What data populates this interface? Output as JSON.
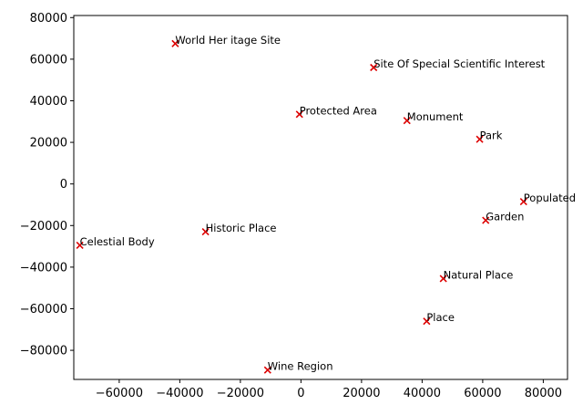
{
  "chart_data": {
    "type": "scatter",
    "title": "",
    "xlabel": "",
    "ylabel": "",
    "xlim": [
      -75000,
      88000
    ],
    "ylim": [
      -94000,
      81000
    ],
    "x_ticks": [
      -60000,
      -40000,
      -20000,
      0,
      20000,
      40000,
      60000,
      80000
    ],
    "y_ticks": [
      -80000,
      -60000,
      -40000,
      -20000,
      0,
      20000,
      40000,
      60000,
      80000
    ],
    "x_tick_labels": [
      "−60000",
      "−40000",
      "−20000",
      "0",
      "20000",
      "40000",
      "60000",
      "80000"
    ],
    "y_tick_labels": [
      "−80000",
      "−60000",
      "−40000",
      "−20000",
      "0",
      "20000",
      "40000",
      "60000",
      "80000"
    ],
    "marker": "x",
    "marker_color": "#dd0000",
    "grid": false,
    "points": [
      {
        "label": "World Her itage Site",
        "x": -41500,
        "y": 67500
      },
      {
        "label": "Site Of Special Scientific Interest",
        "x": 24000,
        "y": 56000
      },
      {
        "label": "Protected Area",
        "x": -500,
        "y": 33500
      },
      {
        "label": "Monument",
        "x": 35000,
        "y": 30500
      },
      {
        "label": "Park",
        "x": 59000,
        "y": 21500
      },
      {
        "label": "Populated",
        "x": 73500,
        "y": -8500
      },
      {
        "label": "Garden",
        "x": 61000,
        "y": -17500
      },
      {
        "label": "Celestial Body",
        "x": -73000,
        "y": -29500
      },
      {
        "label": "Historic Place",
        "x": -31500,
        "y": -23000
      },
      {
        "label": "Natural Place",
        "x": 47000,
        "y": -45500
      },
      {
        "label": "Place",
        "x": 41500,
        "y": -66000
      },
      {
        "label": "Wine Region",
        "x": -11000,
        "y": -89500
      }
    ]
  }
}
